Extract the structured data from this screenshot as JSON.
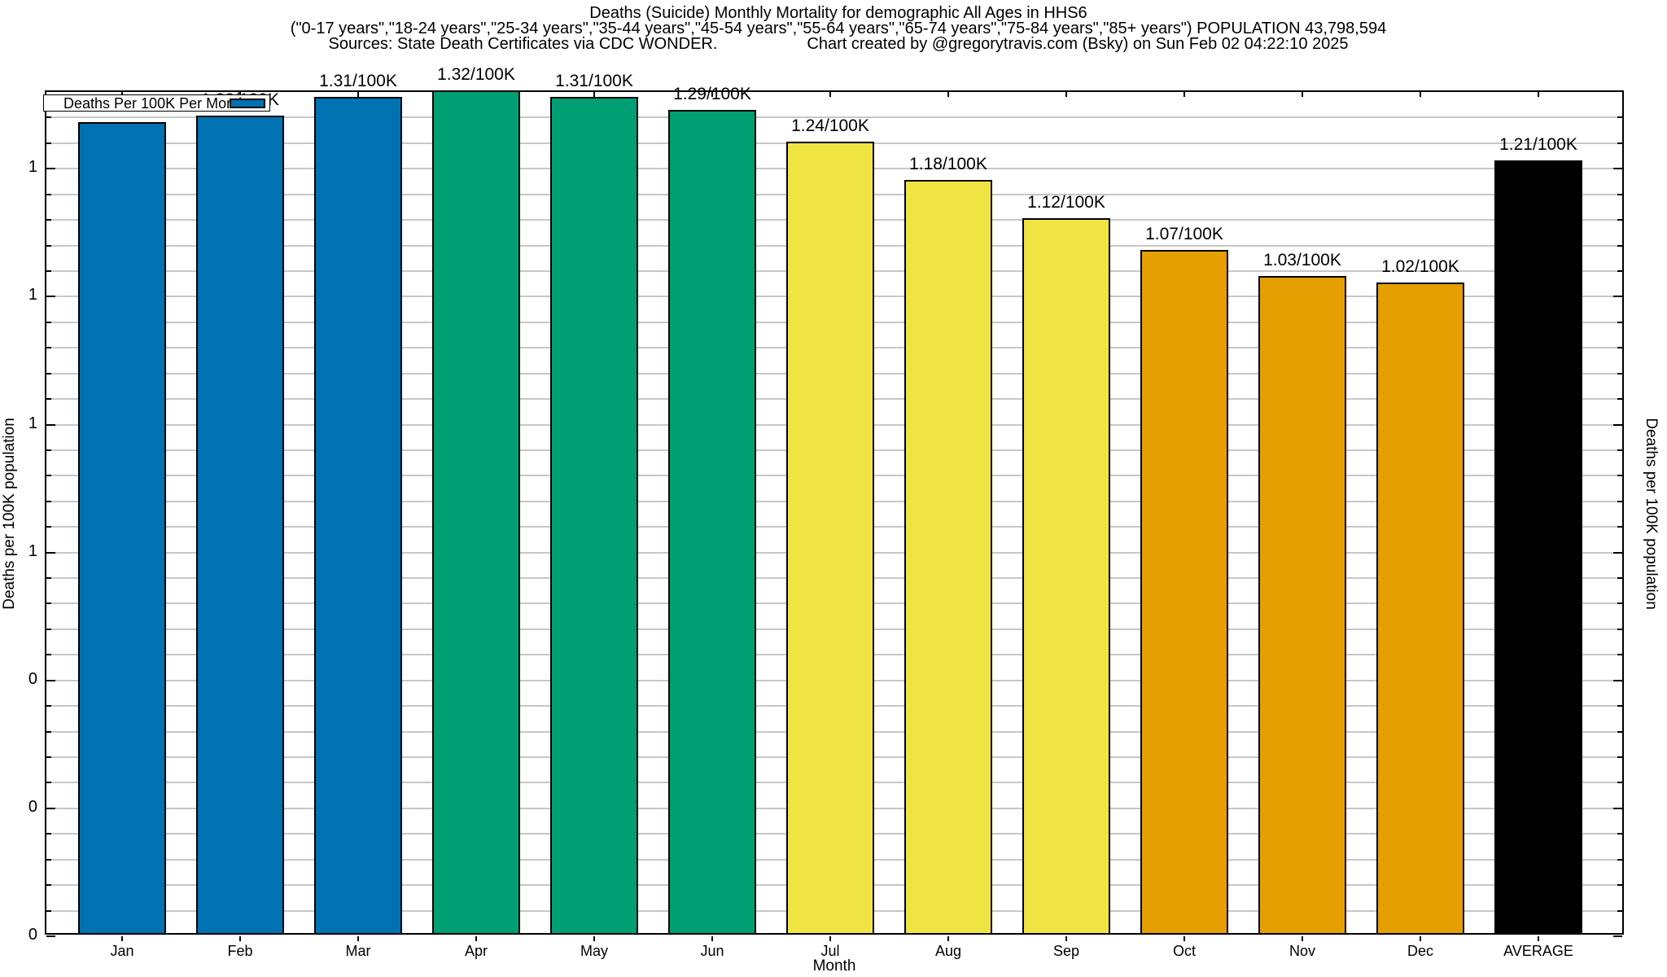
{
  "title": {
    "line1": "Deaths (Suicide) Monthly Mortality for demographic All Ages in HHS6",
    "line2": "(\"0-17 years\",\"18-24 years\",\"25-34 years\",\"35-44 years\",\"45-54 years\",\"55-64 years\",\"65-74 years\",\"75-84 years\",\"85+ years\") POPULATION 43,798,594",
    "line3_sources": "Sources: State Death Certificates via CDC WONDER.",
    "line3_credit": "Chart created by @gregorytravis.com (Bsky) on Sun Feb 02 04:22:10 2025"
  },
  "chart_data": {
    "type": "bar",
    "categories": [
      "Jan",
      "Feb",
      "Mar",
      "Apr",
      "May",
      "Jun",
      "Jul",
      "Aug",
      "Sep",
      "Oct",
      "Nov",
      "Dec",
      "AVERAGE"
    ],
    "values": [
      1.27,
      1.28,
      1.31,
      1.32,
      1.31,
      1.29,
      1.24,
      1.18,
      1.12,
      1.07,
      1.03,
      1.02,
      1.21
    ],
    "value_labels": [
      "1.27/100K",
      "1.28/100K",
      "1.31/100K",
      "1.32/100K",
      "1.31/100K",
      "1.29/100K",
      "1.24/100K",
      "1.18/100K",
      "1.12/100K",
      "1.07/100K",
      "1.03/100K",
      "1.02/100K",
      "1.21/100K"
    ],
    "bar_colors": [
      "#0072B2",
      "#0072B2",
      "#0072B2",
      "#009E73",
      "#009E73",
      "#009E73",
      "#F0E442",
      "#F0E442",
      "#F0E442",
      "#E69F00",
      "#E69F00",
      "#E69F00",
      "#000000"
    ],
    "title": "Deaths (Suicide) Monthly Mortality for demographic All Ages in HHS6",
    "xlabel": "Month",
    "ylabel_left": "Deaths per 100K population",
    "ylabel_right": "Deaths per 100K population",
    "ylim": [
      0,
      1.32
    ],
    "ytick_minor_step": 0.04,
    "ytick_major_step": 0.2,
    "ytick_major_labels_top_to_bottom": [
      "1",
      "1",
      "1",
      "1",
      "0",
      "0",
      "0"
    ],
    "grid": true,
    "legend": {
      "label": "Deaths Per 100K Per Month",
      "swatch_color": "#0072B2",
      "position": "top-left",
      "boxed": true
    }
  }
}
